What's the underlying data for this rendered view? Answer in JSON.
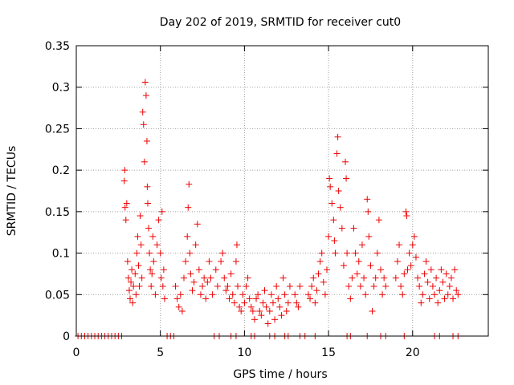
{
  "chart_data": {
    "type": "scatter",
    "title": "Day 202 of 2019, SRMTID for receiver cut0",
    "xlabel": "GPS time / hours",
    "ylabel": "SRMTID / TECUs",
    "xlim": [
      0,
      24.5
    ],
    "ylim": [
      0,
      0.35
    ],
    "xticks": [
      0,
      5,
      10,
      15,
      20
    ],
    "xtick_labels": [
      "0",
      "5",
      "10",
      "15",
      "20"
    ],
    "yticks": [
      0,
      0.05,
      0.1,
      0.15,
      0.2,
      0.25,
      0.3,
      0.35
    ],
    "ytick_labels": [
      "0",
      "0.05",
      "0.1",
      "0.15",
      "0.2",
      "0.25",
      "0.3",
      "0.35"
    ],
    "grid": true,
    "marker": "+",
    "series": [
      {
        "name": "SRMTID",
        "color": "#ee0000",
        "points": [
          [
            0.1,
            0
          ],
          [
            0.3,
            0
          ],
          [
            0.5,
            0
          ],
          [
            0.7,
            0
          ],
          [
            0.9,
            0
          ],
          [
            1.1,
            0
          ],
          [
            1.3,
            0
          ],
          [
            1.5,
            0
          ],
          [
            1.7,
            0
          ],
          [
            1.9,
            0
          ],
          [
            2.1,
            0
          ],
          [
            2.3,
            0
          ],
          [
            2.5,
            0
          ],
          [
            2.7,
            0
          ],
          [
            5.4,
            0
          ],
          [
            5.6,
            0
          ],
          [
            5.8,
            0
          ],
          [
            8.2,
            0
          ],
          [
            8.5,
            0
          ],
          [
            9.2,
            0
          ],
          [
            9.5,
            0
          ],
          [
            10.4,
            0
          ],
          [
            10.6,
            0
          ],
          [
            11.5,
            0
          ],
          [
            11.8,
            0
          ],
          [
            12.4,
            0
          ],
          [
            12.6,
            0
          ],
          [
            13.3,
            0
          ],
          [
            13.6,
            0
          ],
          [
            14.2,
            0
          ],
          [
            16.1,
            0
          ],
          [
            16.3,
            0
          ],
          [
            17.3,
            0
          ],
          [
            18.1,
            0
          ],
          [
            18.4,
            0
          ],
          [
            19.5,
            0
          ],
          [
            21.3,
            0
          ],
          [
            21.6,
            0
          ],
          [
            22.4,
            0
          ],
          [
            22.7,
            0
          ],
          [
            2.85,
            0.187
          ],
          [
            2.88,
            0.2
          ],
          [
            2.9,
            0.155
          ],
          [
            2.95,
            0.14
          ],
          [
            3.0,
            0.16
          ],
          [
            3.05,
            0.09
          ],
          [
            3.1,
            0.07
          ],
          [
            3.15,
            0.055
          ],
          [
            3.2,
            0.045
          ],
          [
            3.25,
            0.065
          ],
          [
            3.3,
            0.08
          ],
          [
            3.35,
            0.04
          ],
          [
            3.4,
            0.06
          ],
          [
            3.5,
            0.075
          ],
          [
            3.55,
            0.05
          ],
          [
            3.6,
            0.1
          ],
          [
            3.65,
            0.12
          ],
          [
            3.7,
            0.085
          ],
          [
            3.75,
            0.06
          ],
          [
            3.8,
            0.145
          ],
          [
            3.85,
            0.11
          ],
          [
            3.9,
            0.07
          ],
          [
            3.95,
            0.27
          ],
          [
            4.0,
            0.255
          ],
          [
            4.05,
            0.21
          ],
          [
            4.1,
            0.306
          ],
          [
            4.15,
            0.29
          ],
          [
            4.2,
            0.235
          ],
          [
            4.22,
            0.18
          ],
          [
            4.25,
            0.16
          ],
          [
            4.3,
            0.13
          ],
          [
            4.35,
            0.1
          ],
          [
            4.4,
            0.08
          ],
          [
            4.45,
            0.06
          ],
          [
            4.5,
            0.075
          ],
          [
            4.55,
            0.12
          ],
          [
            4.6,
            0.09
          ],
          [
            4.7,
            0.05
          ],
          [
            4.8,
            0.11
          ],
          [
            4.9,
            0.14
          ],
          [
            5.0,
            0.1
          ],
          [
            5.05,
            0.07
          ],
          [
            5.1,
            0.15
          ],
          [
            5.15,
            0.06
          ],
          [
            5.2,
            0.08
          ],
          [
            5.25,
            0.045
          ],
          [
            5.9,
            0.06
          ],
          [
            6.0,
            0.045
          ],
          [
            6.1,
            0.035
          ],
          [
            6.2,
            0.05
          ],
          [
            6.3,
            0.03
          ],
          [
            6.4,
            0.07
          ],
          [
            6.5,
            0.09
          ],
          [
            6.6,
            0.12
          ],
          [
            6.65,
            0.155
          ],
          [
            6.7,
            0.183
          ],
          [
            6.75,
            0.1
          ],
          [
            6.8,
            0.075
          ],
          [
            6.9,
            0.055
          ],
          [
            7.0,
            0.065
          ],
          [
            7.1,
            0.11
          ],
          [
            7.2,
            0.135
          ],
          [
            7.3,
            0.08
          ],
          [
            7.4,
            0.05
          ],
          [
            7.5,
            0.06
          ],
          [
            7.6,
            0.07
          ],
          [
            7.7,
            0.045
          ],
          [
            7.8,
            0.065
          ],
          [
            7.9,
            0.09
          ],
          [
            8.0,
            0.07
          ],
          [
            8.1,
            0.05
          ],
          [
            8.3,
            0.08
          ],
          [
            8.4,
            0.06
          ],
          [
            8.6,
            0.09
          ],
          [
            8.7,
            0.1
          ],
          [
            8.8,
            0.07
          ],
          [
            8.9,
            0.055
          ],
          [
            9.0,
            0.06
          ],
          [
            9.1,
            0.045
          ],
          [
            9.2,
            0.075
          ],
          [
            9.3,
            0.05
          ],
          [
            9.4,
            0.04
          ],
          [
            9.5,
            0.09
          ],
          [
            9.55,
            0.11
          ],
          [
            9.6,
            0.06
          ],
          [
            9.7,
            0.035
          ],
          [
            9.8,
            0.03
          ],
          [
            9.9,
            0.05
          ],
          [
            10.0,
            0.04
          ],
          [
            10.1,
            0.06
          ],
          [
            10.2,
            0.07
          ],
          [
            10.3,
            0.045
          ],
          [
            10.4,
            0.035
          ],
          [
            10.5,
            0.03
          ],
          [
            10.6,
            0.02
          ],
          [
            10.7,
            0.045
          ],
          [
            10.8,
            0.05
          ],
          [
            10.9,
            0.03
          ],
          [
            11.0,
            0.025
          ],
          [
            11.1,
            0.04
          ],
          [
            11.2,
            0.055
          ],
          [
            11.3,
            0.035
          ],
          [
            11.4,
            0.015
          ],
          [
            11.5,
            0.03
          ],
          [
            11.6,
            0.05
          ],
          [
            11.7,
            0.04
          ],
          [
            11.8,
            0.02
          ],
          [
            11.9,
            0.06
          ],
          [
            12.0,
            0.045
          ],
          [
            12.1,
            0.035
          ],
          [
            12.2,
            0.025
          ],
          [
            12.3,
            0.07
          ],
          [
            12.4,
            0.05
          ],
          [
            12.5,
            0.03
          ],
          [
            12.6,
            0.04
          ],
          [
            12.7,
            0.06
          ],
          [
            13.0,
            0.05
          ],
          [
            13.1,
            0.04
          ],
          [
            13.2,
            0.035
          ],
          [
            13.3,
            0.06
          ],
          [
            13.8,
            0.05
          ],
          [
            13.9,
            0.045
          ],
          [
            14.0,
            0.06
          ],
          [
            14.1,
            0.07
          ],
          [
            14.2,
            0.04
          ],
          [
            14.3,
            0.055
          ],
          [
            14.4,
            0.075
          ],
          [
            14.5,
            0.09
          ],
          [
            14.6,
            0.1
          ],
          [
            14.7,
            0.065
          ],
          [
            14.8,
            0.05
          ],
          [
            14.9,
            0.08
          ],
          [
            15.0,
            0.12
          ],
          [
            15.05,
            0.19
          ],
          [
            15.1,
            0.18
          ],
          [
            15.2,
            0.16
          ],
          [
            15.3,
            0.14
          ],
          [
            15.35,
            0.115
          ],
          [
            15.4,
            0.1
          ],
          [
            15.5,
            0.22
          ],
          [
            15.55,
            0.24
          ],
          [
            15.6,
            0.175
          ],
          [
            15.7,
            0.155
          ],
          [
            15.8,
            0.13
          ],
          [
            15.9,
            0.085
          ],
          [
            16.0,
            0.21
          ],
          [
            16.05,
            0.19
          ],
          [
            16.1,
            0.1
          ],
          [
            16.2,
            0.06
          ],
          [
            16.3,
            0.045
          ],
          [
            16.4,
            0.07
          ],
          [
            16.5,
            0.13
          ],
          [
            16.6,
            0.1
          ],
          [
            16.7,
            0.075
          ],
          [
            16.8,
            0.09
          ],
          [
            16.9,
            0.06
          ],
          [
            17.0,
            0.11
          ],
          [
            17.1,
            0.07
          ],
          [
            17.2,
            0.05
          ],
          [
            17.3,
            0.165
          ],
          [
            17.35,
            0.15
          ],
          [
            17.4,
            0.12
          ],
          [
            17.5,
            0.085
          ],
          [
            17.6,
            0.03
          ],
          [
            17.7,
            0.06
          ],
          [
            17.8,
            0.07
          ],
          [
            17.9,
            0.1
          ],
          [
            18.0,
            0.14
          ],
          [
            18.1,
            0.08
          ],
          [
            18.2,
            0.05
          ],
          [
            18.3,
            0.07
          ],
          [
            18.4,
            0.06
          ],
          [
            19.0,
            0.07
          ],
          [
            19.1,
            0.09
          ],
          [
            19.2,
            0.11
          ],
          [
            19.3,
            0.06
          ],
          [
            19.4,
            0.05
          ],
          [
            19.5,
            0.075
          ],
          [
            19.6,
            0.15
          ],
          [
            19.65,
            0.145
          ],
          [
            19.7,
            0.08
          ],
          [
            19.8,
            0.1
          ],
          [
            19.9,
            0.085
          ],
          [
            20.0,
            0.11
          ],
          [
            20.1,
            0.12
          ],
          [
            20.2,
            0.095
          ],
          [
            20.3,
            0.07
          ],
          [
            20.4,
            0.06
          ],
          [
            20.5,
            0.04
          ],
          [
            20.6,
            0.05
          ],
          [
            20.7,
            0.075
          ],
          [
            20.8,
            0.09
          ],
          [
            20.9,
            0.065
          ],
          [
            21.0,
            0.045
          ],
          [
            21.1,
            0.08
          ],
          [
            21.2,
            0.06
          ],
          [
            21.3,
            0.05
          ],
          [
            21.4,
            0.07
          ],
          [
            21.5,
            0.04
          ],
          [
            21.6,
            0.055
          ],
          [
            21.7,
            0.08
          ],
          [
            21.8,
            0.065
          ],
          [
            21.9,
            0.045
          ],
          [
            22.0,
            0.075
          ],
          [
            22.1,
            0.05
          ],
          [
            22.2,
            0.06
          ],
          [
            22.3,
            0.07
          ],
          [
            22.4,
            0.045
          ],
          [
            22.5,
            0.08
          ],
          [
            22.6,
            0.055
          ],
          [
            22.7,
            0.05
          ]
        ]
      }
    ]
  }
}
